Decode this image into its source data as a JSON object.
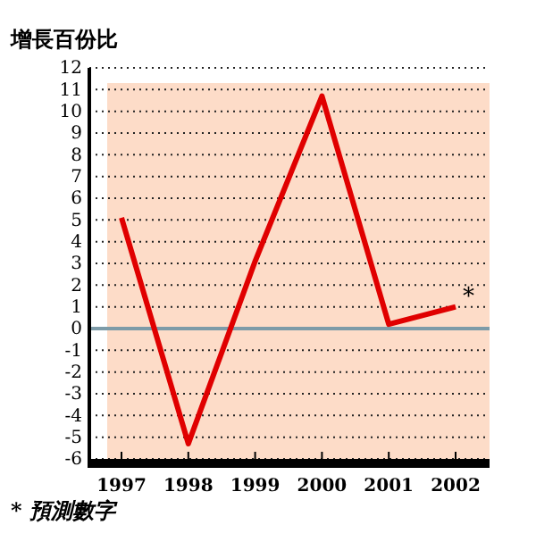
{
  "chart_data": {
    "type": "line",
    "title": "增長百份比",
    "categories": [
      "1997",
      "1998",
      "1999",
      "2000",
      "2001",
      "2002"
    ],
    "series": [
      {
        "color": "#e00000",
        "values": [
          5.1,
          -5.3,
          3.1,
          10.7,
          0.2,
          1.0
        ]
      }
    ],
    "ylim": [
      -6,
      12
    ],
    "yticks": [
      -6,
      -5,
      -4,
      -3,
      -2,
      -1,
      0,
      1,
      2,
      3,
      4,
      5,
      6,
      7,
      8,
      9,
      10,
      11,
      12
    ],
    "grid": "y",
    "marker": "none",
    "line_style": "solid",
    "bands": [
      {
        "axis": "y",
        "from": -6,
        "to": 11.3,
        "color": "#fddcc8"
      }
    ],
    "ref_lines": [
      {
        "axis": "y",
        "value": 0,
        "color": "#7d9ba8"
      }
    ],
    "annotations": [
      {
        "text": "*",
        "x": "2002",
        "y": 1.0
      },
      "* 預測數字"
    ]
  }
}
